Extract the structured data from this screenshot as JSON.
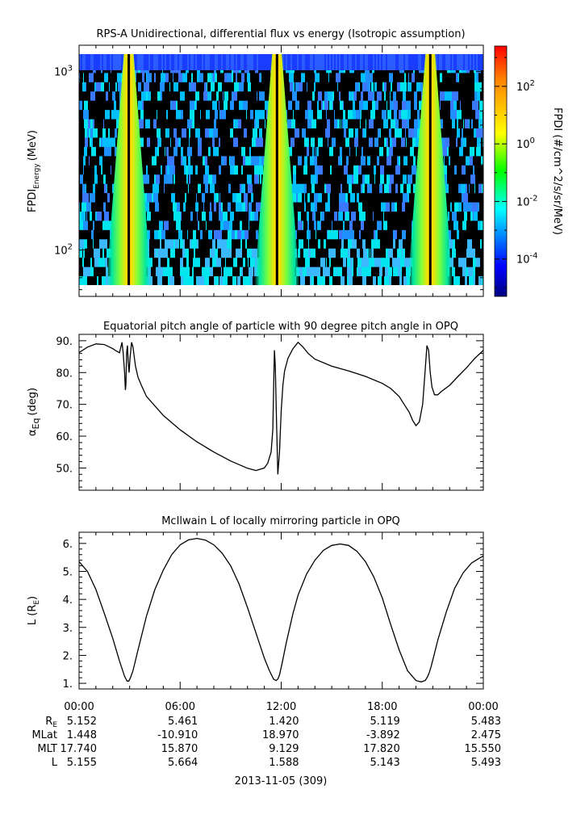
{
  "chart_data": [
    {
      "type": "heatmap",
      "title": "RPS-A Unidirectional, differential flux vs energy (Isotropic assumption)",
      "ylabel": "FPDI",
      "ylabel_sub": "Energy",
      "ylabel_unit": "(MeV)",
      "yscale": "log",
      "ylim": [
        55,
        1400
      ],
      "ytick_values": [
        100,
        1000
      ],
      "ytick_labels": [
        {
          "base": "10",
          "exp": "2"
        },
        {
          "base": "10",
          "exp": "3"
        }
      ],
      "xlim_hours": [
        0,
        24
      ],
      "colorbar": {
        "label": "FPDI (#/cm^2/s/sr/MeV)",
        "scale": "log",
        "range_log10": [
          -5.3,
          3.4
        ],
        "tick_log10": [
          2,
          0,
          -2,
          -4
        ],
        "tick_labels": [
          {
            "base": "10",
            "exp": "2"
          },
          {
            "base": "10",
            "exp": "0"
          },
          {
            "base": "10",
            "exp": "-2"
          },
          {
            "base": "10",
            "exp": "-4"
          }
        ],
        "colors": [
          "#00007f",
          "#0000ff",
          "#00ffff",
          "#00ff00",
          "#ffff00",
          "#ff0000"
        ]
      },
      "perigee_crossings_hours": [
        2.95,
        11.75,
        20.85
      ]
    },
    {
      "type": "line",
      "title": "Equatorial pitch angle of particle with 90 degree pitch angle in OPQ",
      "ylabel": "α",
      "ylabel_sub": "Eq",
      "ylabel_unit": "(deg)",
      "ylim": [
        43,
        92
      ],
      "ytick_values": [
        50,
        60,
        70,
        80,
        90
      ],
      "ytick_labels": [
        "50.",
        "60.",
        "70.",
        "80.",
        "90."
      ],
      "x_hours": [
        0,
        0.5,
        1,
        1.5,
        2,
        2.2,
        2.4,
        2.55,
        2.62,
        2.7,
        2.75,
        2.78,
        2.82,
        2.87,
        2.92,
        2.97,
        3.03,
        3.12,
        3.2,
        3.35,
        3.5,
        3.7,
        4,
        5,
        6,
        7,
        8,
        9,
        10,
        10.5,
        11,
        11.2,
        11.4,
        11.5,
        11.55,
        11.6,
        11.65,
        11.7,
        11.8,
        11.9,
        12,
        12.1,
        12.2,
        12.4,
        12.7,
        13,
        13.3,
        13.6,
        14,
        15,
        16,
        17,
        18,
        18.5,
        19,
        19.3,
        19.6,
        19.8,
        20,
        20.2,
        20.4,
        20.55,
        20.65,
        20.75,
        20.85,
        20.95,
        21.1,
        21.3,
        21.5,
        22,
        22.5,
        23,
        23.5,
        24
      ],
      "y_deg": [
        86.3,
        88.0,
        89.0,
        88.8,
        87.5,
        86.8,
        86.2,
        89.5,
        86.0,
        80.0,
        74.5,
        76.0,
        86.0,
        88.5,
        83.0,
        80.0,
        85.0,
        89.5,
        88.0,
        82.0,
        78.5,
        76.0,
        72.5,
        66.5,
        62.0,
        58.2,
        55.0,
        52.2,
        49.9,
        49.2,
        50.0,
        51.5,
        55.0,
        62.0,
        75.0,
        87.0,
        82.0,
        70.0,
        48.0,
        55.0,
        68.0,
        76.0,
        80.5,
        84.5,
        87.5,
        89.5,
        88.0,
        86.0,
        84.2,
        82.0,
        80.5,
        78.8,
        76.6,
        75.0,
        72.5,
        70.0,
        67.5,
        65.0,
        63.3,
        64.5,
        70.0,
        81.0,
        88.5,
        87.0,
        80.0,
        75.5,
        73.0,
        73.0,
        74.0,
        76.0,
        78.8,
        81.5,
        84.5,
        87.0
      ]
    },
    {
      "type": "line",
      "title": "McIlwain L of locally mirroring particle in OPQ",
      "ylabel": "L (R",
      "ylabel_sub": "E",
      "ylabel_tail": ")",
      "ylim": [
        0.8,
        6.4
      ],
      "ytick_values": [
        1,
        2,
        3,
        4,
        5,
        6
      ],
      "ytick_labels": [
        "1.",
        "2.",
        "3.",
        "4.",
        "5.",
        "6."
      ],
      "x_hours": [
        0,
        0.5,
        1,
        1.5,
        2,
        2.4,
        2.7,
        2.85,
        2.95,
        3.05,
        3.2,
        3.5,
        4,
        4.5,
        5,
        5.5,
        6,
        6.5,
        7,
        7.5,
        8,
        8.5,
        9,
        9.5,
        10,
        10.5,
        11,
        11.3,
        11.55,
        11.7,
        11.8,
        11.9,
        12.05,
        12.3,
        12.7,
        13,
        13.5,
        14,
        14.5,
        15,
        15.5,
        16,
        16.5,
        17,
        17.5,
        18,
        18.5,
        19,
        19.5,
        20,
        20.3,
        20.55,
        20.7,
        20.8,
        20.9,
        21.05,
        21.3,
        21.8,
        22.3,
        22.8,
        23.3,
        23.7,
        24
      ],
      "y_re": [
        5.35,
        5.0,
        4.35,
        3.5,
        2.6,
        1.8,
        1.25,
        1.08,
        1.08,
        1.2,
        1.45,
        2.2,
        3.4,
        4.35,
        5.05,
        5.6,
        5.95,
        6.13,
        6.18,
        6.12,
        5.95,
        5.65,
        5.2,
        4.55,
        3.7,
        2.8,
        1.9,
        1.45,
        1.15,
        1.1,
        1.15,
        1.3,
        1.7,
        2.45,
        3.5,
        4.15,
        4.9,
        5.4,
        5.75,
        5.93,
        5.98,
        5.93,
        5.72,
        5.35,
        4.8,
        4.05,
        3.1,
        2.2,
        1.45,
        1.1,
        1.05,
        1.1,
        1.25,
        1.4,
        1.6,
        1.95,
        2.55,
        3.55,
        4.4,
        4.95,
        5.3,
        5.45,
        5.55
      ]
    }
  ],
  "x_axis": {
    "tick_labels": [
      "00:00",
      "06:00",
      "12:00",
      "18:00",
      "00:00"
    ],
    "tick_hours": [
      0,
      6,
      12,
      18,
      24
    ],
    "date_label": "2013-11-05 (309)"
  },
  "ephemeris": {
    "rows": [
      {
        "label": "R",
        "label_sub": "E",
        "values": [
          "5.152",
          "5.461",
          "1.420",
          "5.119",
          "5.483"
        ]
      },
      {
        "label": "MLat",
        "label_sub": "",
        "values": [
          "1.448",
          "-10.910",
          "18.970",
          "-3.892",
          "2.475"
        ]
      },
      {
        "label": "MLT",
        "label_sub": "",
        "values": [
          "17.740",
          "15.870",
          "9.129",
          "17.820",
          "15.550"
        ]
      },
      {
        "label": "L",
        "label_sub": "",
        "values": [
          "5.155",
          "5.664",
          "1.588",
          "5.143",
          "5.493"
        ]
      }
    ]
  }
}
